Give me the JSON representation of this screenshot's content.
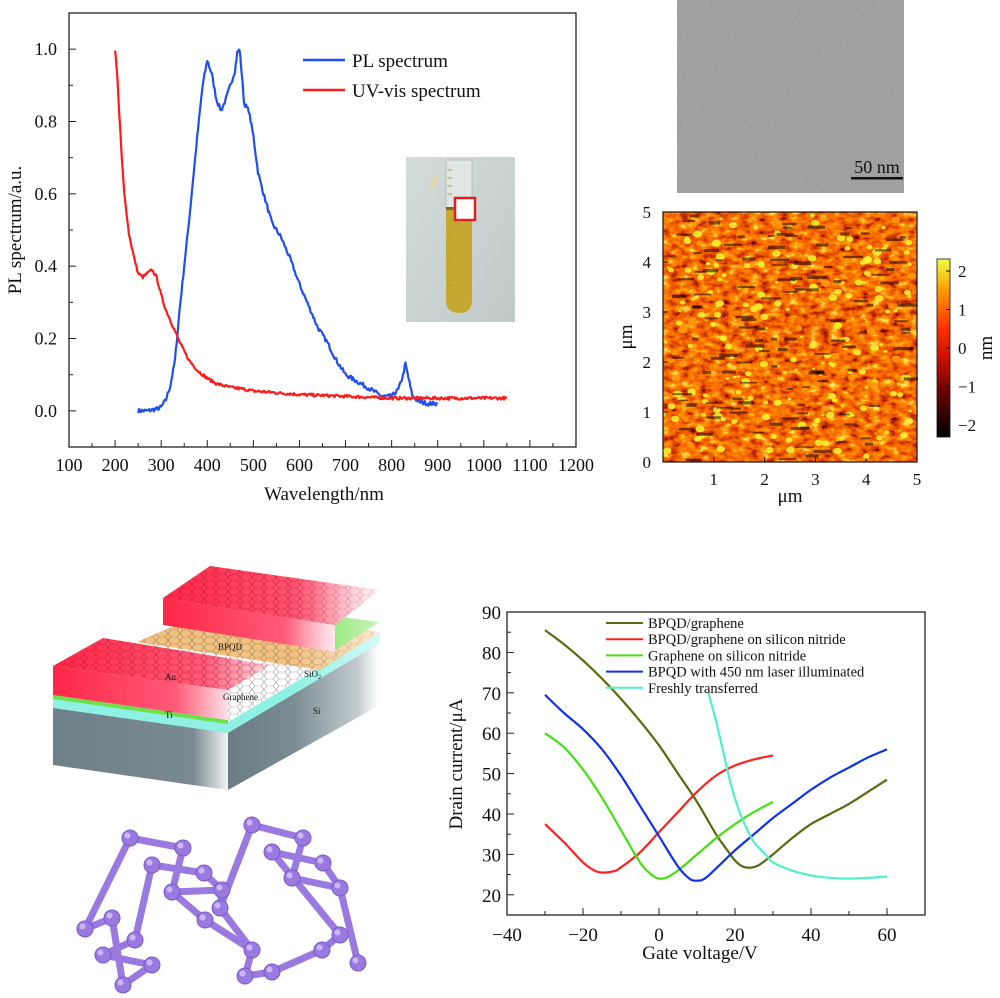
{
  "figure": {
    "panels": [
      "PL/UV-vis spectra with vial inset",
      "TEM image",
      "AFM height map",
      "Device schematic",
      "BP crystal structure",
      "Transfer curves"
    ]
  },
  "tem": {
    "scale_bar_label": "50 nm",
    "colors": {
      "background": "#8e8e8e",
      "scale_bar": "#111111"
    }
  },
  "afm": {
    "x_label": "μm",
    "y_label": "μm",
    "x_ticks": [
      "0",
      "1",
      "2",
      "3",
      "4",
      "5"
    ],
    "y_ticks": [
      "0",
      "1",
      "2",
      "3",
      "4",
      "5"
    ],
    "colorbar": {
      "label": "nm",
      "ticks": [
        "2",
        "1",
        "0",
        "−1",
        "−2"
      ],
      "range": [
        -2.3,
        2.3
      ],
      "colors": [
        "#000000",
        "#5a0000",
        "#d01000",
        "#ff3300",
        "#ff9900",
        "#f0ff40"
      ]
    }
  },
  "device": {
    "labels": {
      "au": "Au",
      "bpqd": "BPQD",
      "sio2": "SiO",
      "sio2_sub": "2",
      "graphene": "Graphene",
      "ti": "Ti",
      "si": "Si"
    },
    "colors": {
      "au": "#ff2a4a",
      "bpqd": "#f2b76a",
      "sio2": "#8ff0e4",
      "ti": "#6ee04a",
      "si": "#6e8088"
    }
  },
  "molecule": {
    "description": "Black phosphorus puckered structure",
    "color": "#9a7ae0"
  },
  "chart_data": [
    {
      "type": "line",
      "title": "",
      "xlabel": "Wavelength/nm",
      "ylabel": "PL  spectrum/a.u.",
      "xlim": [
        100,
        1200
      ],
      "ylim": [
        -0.1,
        1.1
      ],
      "x_ticks": [
        "100",
        "200",
        "300",
        "400",
        "500",
        "600",
        "700",
        "800",
        "900",
        "1000",
        "1100",
        "1200"
      ],
      "y_ticks": [
        "0.0",
        "0.2",
        "0.4",
        "0.6",
        "0.8",
        "1.0"
      ],
      "legend_position": "top-right",
      "inset": "Photo of test tube containing yellow BPQD dispersion",
      "series": [
        {
          "name": "PL spectrum",
          "color": "#1f4ff0",
          "x": [
            250,
            270,
            290,
            300,
            310,
            320,
            330,
            340,
            350,
            360,
            370,
            380,
            390,
            400,
            410,
            420,
            430,
            440,
            450,
            460,
            465,
            470,
            475,
            480,
            490,
            500,
            510,
            520,
            540,
            560,
            580,
            600,
            620,
            640,
            660,
            680,
            700,
            720,
            740,
            760,
            780,
            800,
            815,
            825,
            830,
            835,
            845,
            860,
            880,
            900
          ],
          "y": [
            0.0,
            0.0,
            0.005,
            0.01,
            0.03,
            0.07,
            0.14,
            0.28,
            0.4,
            0.52,
            0.65,
            0.78,
            0.9,
            0.97,
            0.93,
            0.86,
            0.83,
            0.86,
            0.9,
            0.94,
            0.99,
            1.0,
            0.93,
            0.85,
            0.83,
            0.76,
            0.66,
            0.61,
            0.52,
            0.48,
            0.42,
            0.35,
            0.29,
            0.23,
            0.19,
            0.14,
            0.1,
            0.085,
            0.07,
            0.055,
            0.04,
            0.04,
            0.06,
            0.1,
            0.13,
            0.1,
            0.04,
            0.025,
            0.02,
            0.02
          ]
        },
        {
          "name": "UV-vis spectrum",
          "color": "#ff1a1a",
          "x": [
            200,
            205,
            210,
            215,
            220,
            230,
            240,
            250,
            260,
            270,
            280,
            290,
            300,
            310,
            320,
            330,
            340,
            350,
            360,
            380,
            400,
            420,
            450,
            480,
            500,
            550,
            600,
            700,
            800,
            900,
            1000,
            1050
          ],
          "y": [
            1.0,
            0.92,
            0.8,
            0.69,
            0.6,
            0.49,
            0.43,
            0.38,
            0.37,
            0.38,
            0.39,
            0.37,
            0.32,
            0.28,
            0.25,
            0.22,
            0.19,
            0.165,
            0.14,
            0.11,
            0.09,
            0.075,
            0.065,
            0.06,
            0.055,
            0.05,
            0.045,
            0.04,
            0.035,
            0.035,
            0.035,
            0.035
          ]
        }
      ]
    },
    {
      "type": "line",
      "title": "",
      "xlabel": "Gate voltage/V",
      "ylabel": "Drain current/μA",
      "xlim": [
        -40,
        70
      ],
      "ylim": [
        15,
        90
      ],
      "x_ticks": [
        "−40",
        "−20",
        "0",
        "20",
        "40",
        "60"
      ],
      "y_ticks": [
        "20",
        "30",
        "40",
        "50",
        "60",
        "70",
        "80",
        "90"
      ],
      "legend_position": "top",
      "series": [
        {
          "name": "BPQD/graphene",
          "color": "#5a6a10",
          "x": [
            -30,
            -25,
            -20,
            -15,
            -10,
            -5,
            0,
            5,
            10,
            15,
            18,
            20,
            22,
            24,
            26,
            28,
            30,
            35,
            40,
            45,
            50,
            55,
            60
          ],
          "y": [
            85.5,
            82,
            78,
            73.5,
            68.5,
            63,
            57,
            50,
            43,
            35,
            31,
            28.5,
            27,
            26.7,
            27.2,
            28.5,
            30,
            34,
            37.5,
            40,
            42.5,
            45.5,
            48.5
          ]
        },
        {
          "name": "BPQD/graphene on silicon nitride",
          "color": "#ff2020",
          "x": [
            -30,
            -25,
            -20,
            -17,
            -15,
            -12,
            -10,
            -5,
            0,
            5,
            10,
            15,
            20,
            25,
            30
          ],
          "y": [
            37.5,
            33,
            28,
            26,
            25.5,
            25.8,
            26.8,
            30.5,
            35.5,
            40.5,
            45.5,
            49.5,
            52,
            53.5,
            54.5
          ]
        },
        {
          "name": "Graphene on silicon nitride",
          "color": "#44e010",
          "x": [
            -30,
            -25,
            -20,
            -15,
            -10,
            -5,
            -2,
            0,
            2,
            5,
            10,
            15,
            20,
            25,
            30
          ],
          "y": [
            60,
            56.5,
            51,
            44,
            36,
            28,
            25,
            24,
            24.3,
            26,
            30,
            34,
            37.5,
            40.5,
            43
          ]
        },
        {
          "name": "BPQD with 450 nm laser illuminated",
          "color": "#1030f0",
          "x": [
            -30,
            -25,
            -20,
            -15,
            -10,
            -5,
            0,
            5,
            8,
            10,
            12,
            15,
            20,
            25,
            30,
            35,
            40,
            45,
            50,
            55,
            60
          ],
          "y": [
            69.5,
            65,
            61,
            56,
            49.5,
            42,
            34.5,
            27,
            24,
            23.5,
            24,
            26.5,
            31,
            35,
            39,
            42.5,
            46,
            49,
            51.5,
            54,
            56
          ]
        },
        {
          "name": "Freshly transferred",
          "color": "#50f0c8",
          "x": [
            13,
            15,
            17,
            19,
            21,
            23,
            25,
            28,
            30,
            35,
            40,
            45,
            50,
            55,
            60
          ],
          "y": [
            70,
            63,
            55,
            47,
            41,
            36.5,
            33,
            30,
            28,
            26,
            24.8,
            24.2,
            24,
            24.2,
            24.5
          ]
        }
      ]
    }
  ]
}
